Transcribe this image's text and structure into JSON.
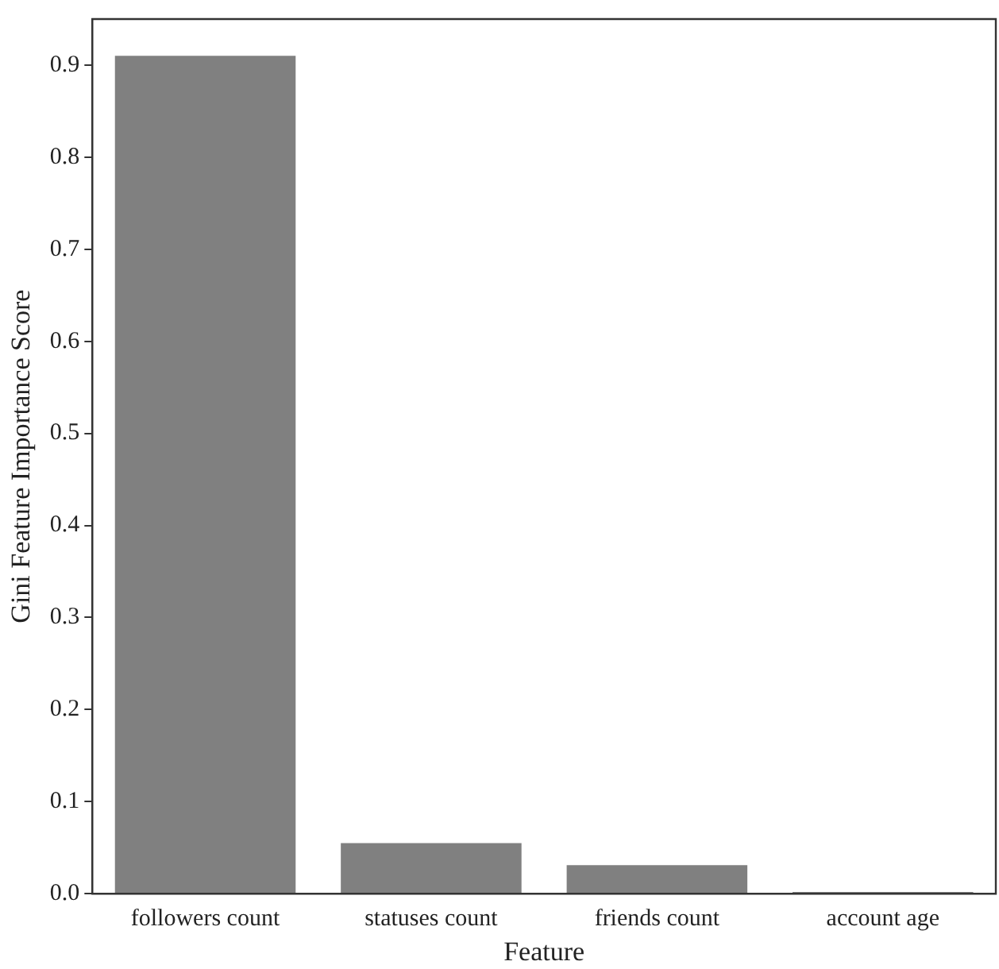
{
  "chart_data": {
    "type": "bar",
    "xlabel": "Feature",
    "ylabel": "Gini Feature Importance Score",
    "categories": [
      "followers count",
      "statuses count",
      "friends count",
      "account age"
    ],
    "values": [
      0.91,
      0.055,
      0.031,
      0.002
    ],
    "color": "#808080",
    "ylim": [
      0,
      0.95
    ],
    "yticks": [
      {
        "value": 0,
        "label": "0.0"
      },
      {
        "value": 0.1,
        "label": "0.1"
      },
      {
        "value": 0.2,
        "label": "0.2"
      },
      {
        "value": 0.3,
        "label": "0.3"
      },
      {
        "value": 0.4,
        "label": "0.4"
      },
      {
        "value": 0.5,
        "label": "0.5"
      },
      {
        "value": 0.6,
        "label": "0.6"
      },
      {
        "value": 0.7,
        "label": "0.7"
      },
      {
        "value": 0.8,
        "label": "0.8"
      },
      {
        "value": 0.9,
        "label": "0.9"
      }
    ],
    "grid": false,
    "legend": false
  }
}
